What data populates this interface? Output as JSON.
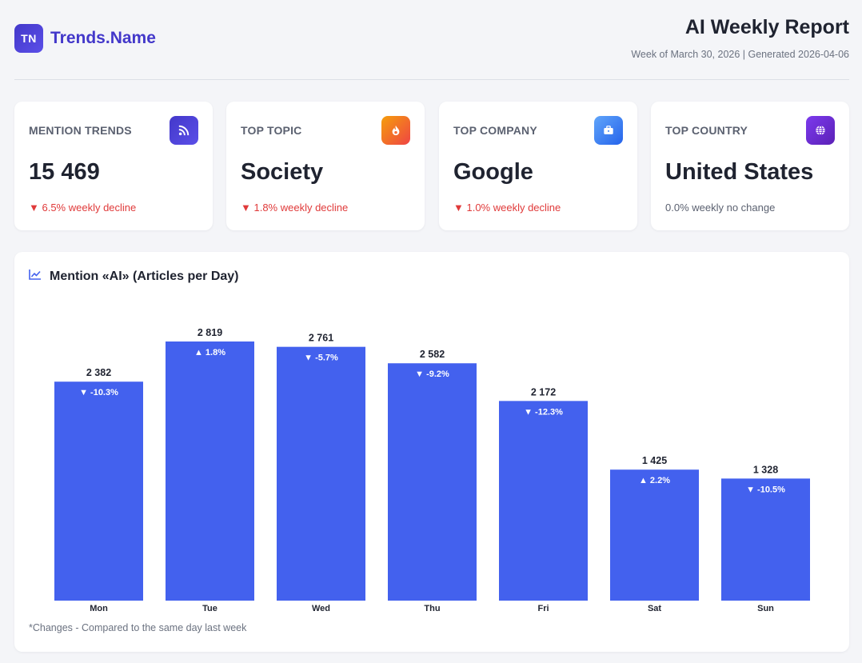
{
  "brand": {
    "logo_text": "TN",
    "name": "Trends.Name"
  },
  "report": {
    "title": "AI Weekly Report",
    "subtitle": "Week of March 30, 2026 | Generated 2026-04-06"
  },
  "cards": [
    {
      "label": "MENTION TRENDS",
      "value": "15 469",
      "change": "▼ 6.5% weekly decline",
      "icon": "rss-icon",
      "color": "#4338ca"
    },
    {
      "label": "TOP TOPIC",
      "value": "Society",
      "change": "▼ 1.8% weekly decline",
      "icon": "fire-icon",
      "color": "#f97316"
    },
    {
      "label": "TOP COMPANY",
      "value": "Google",
      "change": "▼ 1.0% weekly decline",
      "icon": "briefcase-icon",
      "color": "#3b82f6"
    },
    {
      "label": "TOP COUNTRY",
      "value": "United States",
      "change": "0.0% weekly no change",
      "icon": "globe-icon",
      "color": "#6d28d9"
    }
  ],
  "colors": {
    "bar": "#4361ee",
    "decline": "#e03a3a",
    "brand": "#4338ca"
  },
  "chart": {
    "title": "Mention «AI» (Articles per Day)",
    "icon": "line-chart-icon",
    "footnote": "*Changes - Compared to the same day last week"
  },
  "chart_data": {
    "type": "bar",
    "categories": [
      "Mon",
      "Tue",
      "Wed",
      "Thu",
      "Fri",
      "Sat",
      "Sun"
    ],
    "values": [
      2382,
      2819,
      2761,
      2582,
      2172,
      1425,
      1328
    ],
    "value_labels": [
      "2 382",
      "2 819",
      "2 761",
      "2 582",
      "2 172",
      "1 425",
      "1 328"
    ],
    "change_labels": [
      "▼ -10.3%",
      "▲ 1.8%",
      "▼ -5.7%",
      "▼ -9.2%",
      "▼ -12.3%",
      "▲ 2.2%",
      "▼ -10.5%"
    ],
    "title": "Mention «AI» (Articles per Day)",
    "ylim": [
      0,
      2819
    ],
    "grid": false,
    "legend": "none"
  }
}
